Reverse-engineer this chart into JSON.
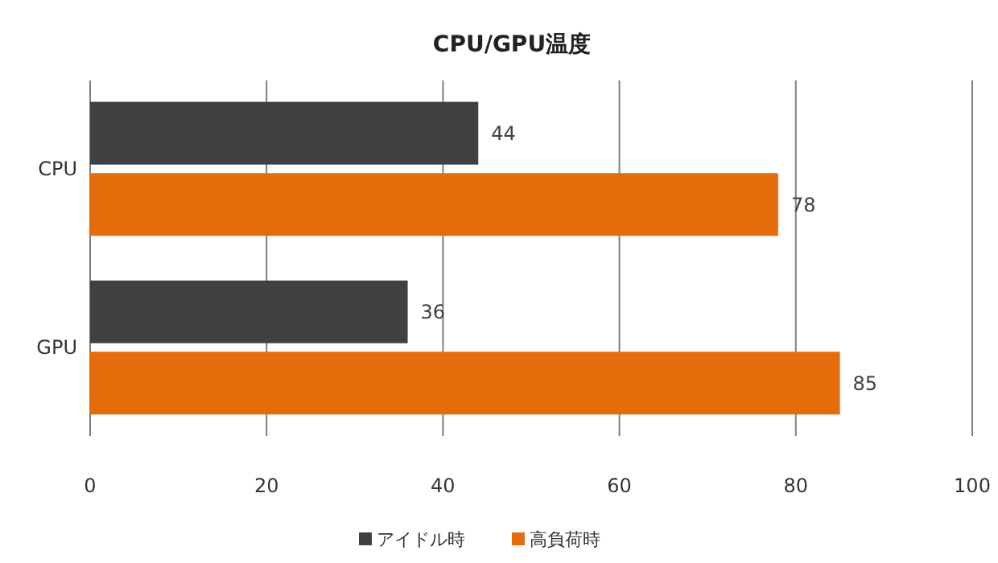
{
  "chart_data": {
    "type": "bar",
    "orientation": "horizontal",
    "title": "CPU/GPU温度",
    "categories": [
      "CPU",
      "GPU"
    ],
    "series": [
      {
        "name": "アイドル時",
        "color": "#404040",
        "values": [
          44,
          36
        ]
      },
      {
        "name": "高負荷時",
        "color": "#e46c0a",
        "values": [
          78,
          85
        ]
      }
    ],
    "xlim": [
      0,
      100
    ],
    "xticks": [
      0,
      20,
      40,
      60,
      80,
      100
    ],
    "grid": "x",
    "legend": "bottom",
    "data_labels": true
  }
}
